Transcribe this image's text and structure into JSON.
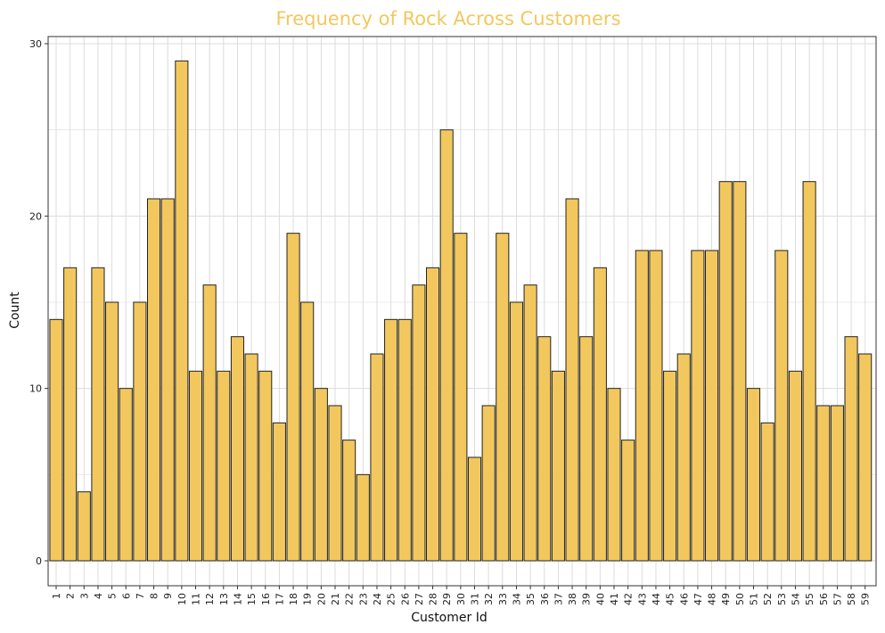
{
  "chart_data": {
    "type": "bar",
    "title": "Frequency of Rock Across Customers",
    "xlabel": "Customer Id",
    "ylabel": "Count",
    "ylim": [
      0,
      30
    ],
    "yticks": [
      0,
      10,
      20,
      30
    ],
    "grid": true,
    "legend": "none",
    "colors": {
      "bar_fill": "#f2c85e",
      "bar_stroke": "#222222",
      "title": "#f2c85e",
      "grid": "#dcdcdc",
      "frame": "#333333"
    },
    "categories": [
      "1",
      "2",
      "3",
      "4",
      "5",
      "6",
      "7",
      "8",
      "9",
      "10",
      "11",
      "12",
      "13",
      "14",
      "15",
      "16",
      "17",
      "18",
      "19",
      "20",
      "21",
      "22",
      "23",
      "24",
      "25",
      "26",
      "27",
      "28",
      "29",
      "30",
      "31",
      "32",
      "33",
      "34",
      "35",
      "36",
      "37",
      "38",
      "39",
      "40",
      "41",
      "42",
      "43",
      "44",
      "45",
      "46",
      "47",
      "48",
      "49",
      "50",
      "51",
      "52",
      "53",
      "54",
      "55",
      "56",
      "57",
      "58",
      "59"
    ],
    "values": [
      14,
      17,
      4,
      17,
      15,
      10,
      15,
      21,
      21,
      29,
      11,
      16,
      11,
      13,
      12,
      11,
      8,
      19,
      15,
      10,
      9,
      7,
      5,
      12,
      14,
      14,
      16,
      17,
      25,
      19,
      6,
      9,
      19,
      15,
      16,
      13,
      11,
      21,
      13,
      17,
      10,
      7,
      18,
      18,
      11,
      12,
      18,
      18,
      22,
      22,
      10,
      8,
      18,
      11,
      22,
      9,
      9,
      13,
      12
    ]
  }
}
